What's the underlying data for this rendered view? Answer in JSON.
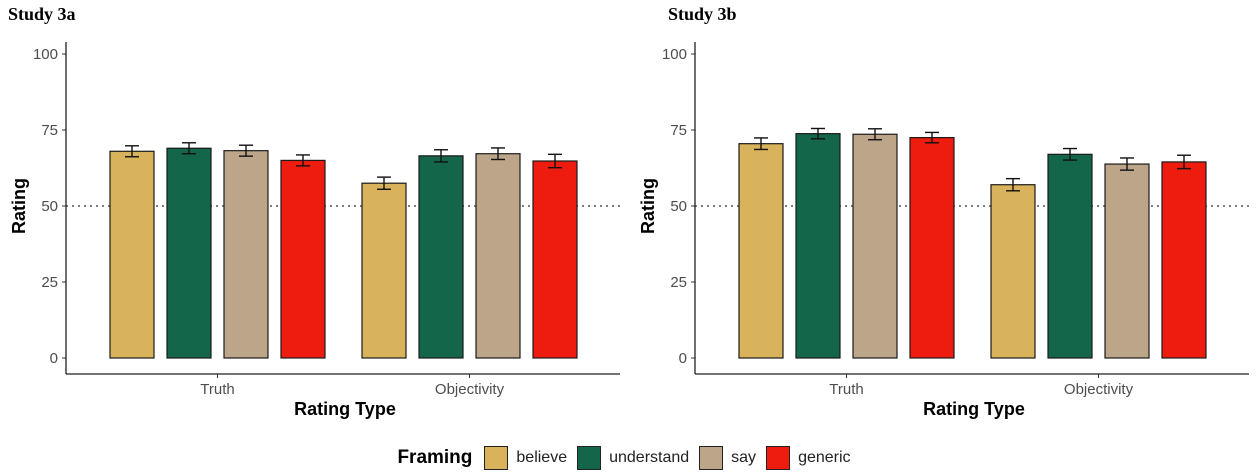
{
  "chart_data": [
    {
      "type": "bar",
      "title": "Study 3a",
      "xlabel": "Rating Type",
      "ylabel": "Rating",
      "ylim": [
        0,
        100
      ],
      "yticks": [
        0,
        25,
        50,
        75,
        100
      ],
      "reference_line": 50,
      "categories": [
        "Truth",
        "Objectivity"
      ],
      "series": [
        {
          "name": "believe",
          "values": [
            68,
            57.5
          ],
          "errors": [
            1.8,
            2.0
          ]
        },
        {
          "name": "understand",
          "values": [
            69,
            66.5
          ],
          "errors": [
            1.8,
            2.0
          ]
        },
        {
          "name": "say",
          "values": [
            68.2,
            67.2
          ],
          "errors": [
            1.8,
            1.9
          ]
        },
        {
          "name": "generic",
          "values": [
            65,
            64.8
          ],
          "errors": [
            1.8,
            2.2
          ]
        }
      ]
    },
    {
      "type": "bar",
      "title": "Study 3b",
      "xlabel": "Rating Type",
      "ylabel": "Rating",
      "ylim": [
        0,
        100
      ],
      "yticks": [
        0,
        25,
        50,
        75,
        100
      ],
      "reference_line": 50,
      "categories": [
        "Truth",
        "Objectivity"
      ],
      "series": [
        {
          "name": "believe",
          "values": [
            70.5,
            57
          ],
          "errors": [
            1.9,
            2.0
          ]
        },
        {
          "name": "understand",
          "values": [
            73.8,
            67
          ],
          "errors": [
            1.7,
            1.9
          ]
        },
        {
          "name": "say",
          "values": [
            73.6,
            63.8
          ],
          "errors": [
            1.8,
            2.0
          ]
        },
        {
          "name": "generic",
          "values": [
            72.5,
            64.5
          ],
          "errors": [
            1.7,
            2.2
          ]
        }
      ]
    }
  ],
  "legend": {
    "title": "Framing",
    "items": [
      {
        "label": "believe",
        "color": "#d9b25c"
      },
      {
        "label": "understand",
        "color": "#14664a"
      },
      {
        "label": "say",
        "color": "#bda58a"
      },
      {
        "label": "generic",
        "color": "#ee1c0f"
      }
    ]
  }
}
